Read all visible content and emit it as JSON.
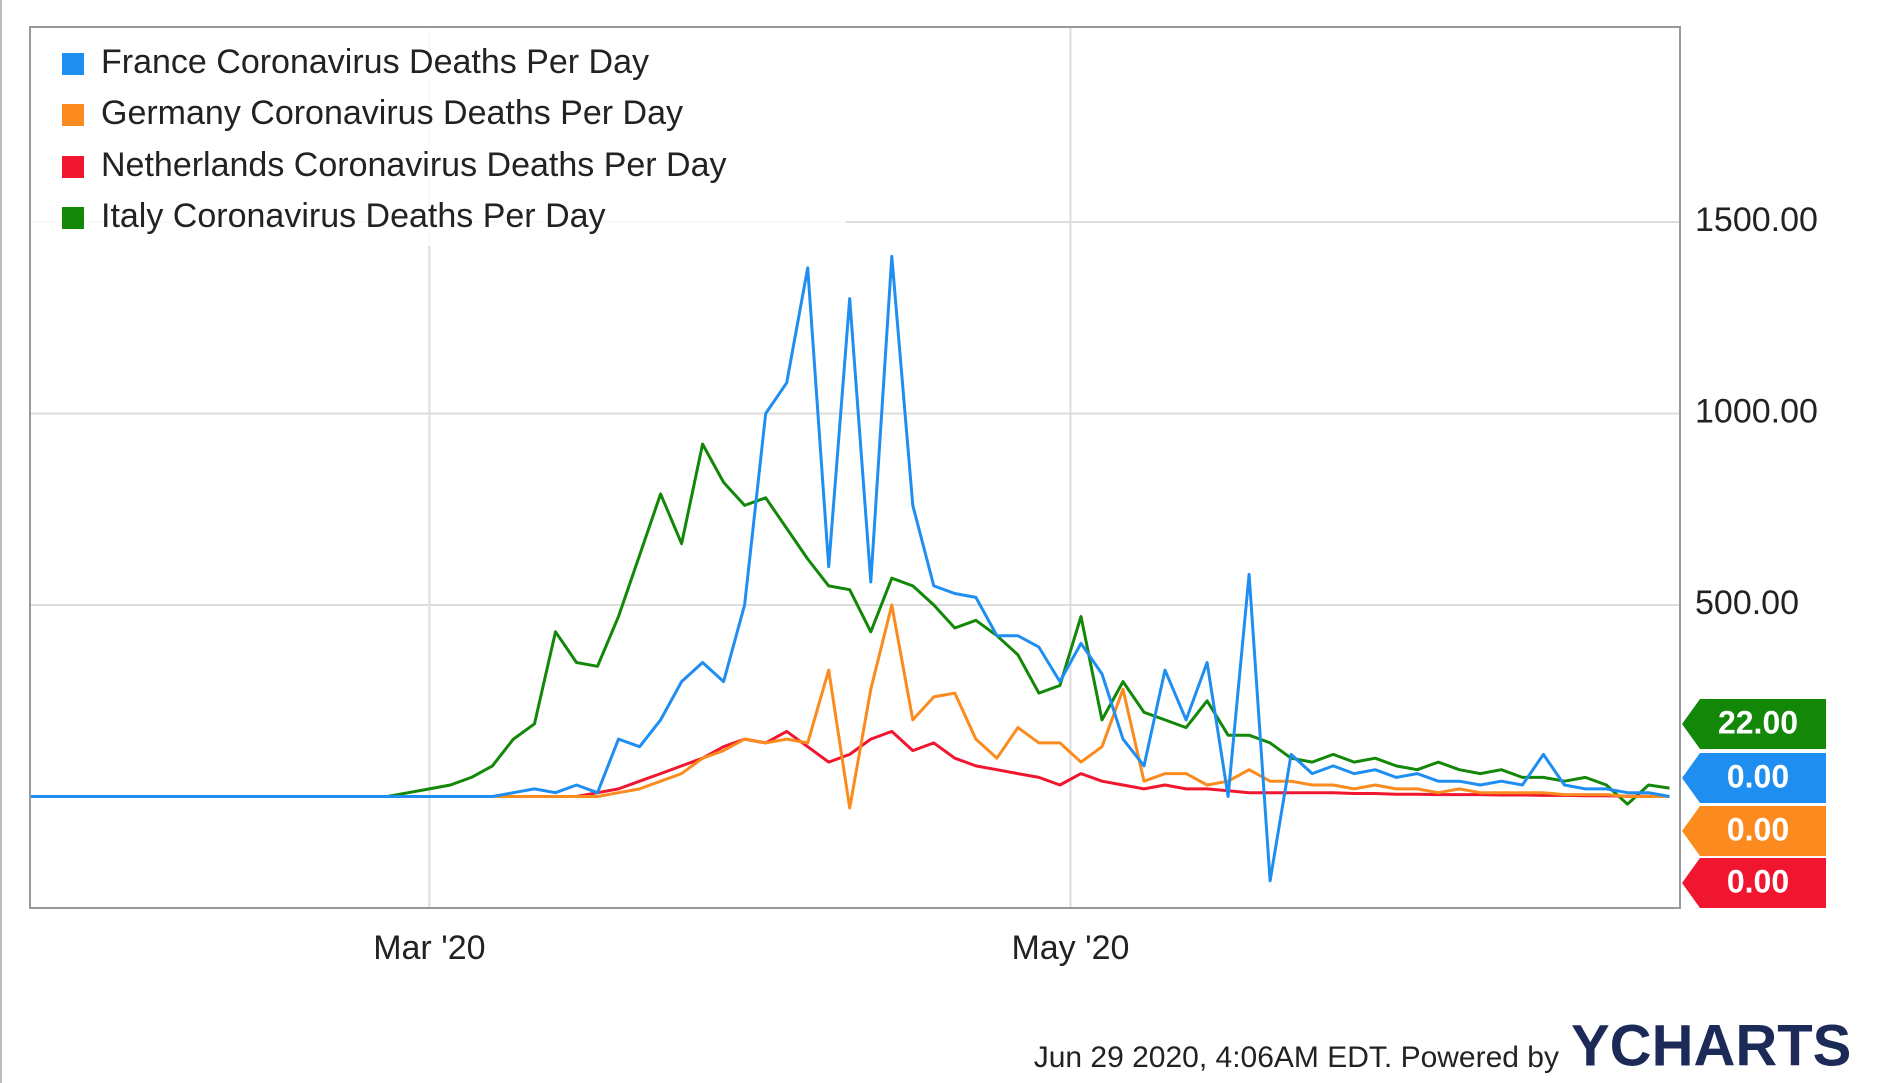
{
  "chart_data": {
    "type": "line",
    "x": [
      0,
      2,
      4,
      6,
      8,
      10,
      12,
      14,
      16,
      18,
      20,
      22,
      24,
      26,
      28,
      30,
      32,
      34,
      36,
      38,
      40,
      42,
      44,
      46,
      48,
      50,
      52,
      54,
      56,
      58,
      60,
      62,
      64,
      66,
      68,
      70,
      72,
      74,
      76,
      78,
      80,
      82,
      84,
      86,
      88,
      90,
      92,
      94,
      96,
      98,
      100,
      102,
      104,
      106,
      108,
      110,
      112,
      114,
      116,
      118,
      120,
      122,
      124,
      126,
      128,
      130,
      132,
      134,
      136,
      138,
      140,
      142,
      144,
      146,
      148,
      150,
      152,
      154,
      156
    ],
    "xlim": [
      0,
      157
    ],
    "xticks": [
      {
        "value": 38,
        "label": "Mar '20"
      },
      {
        "value": 99,
        "label": "May '20"
      }
    ],
    "ylim": [
      -291,
      2009
    ],
    "yticks": [
      {
        "value": 500,
        "label": "500.00"
      },
      {
        "value": 1000,
        "label": "1000.00"
      },
      {
        "value": 1500,
        "label": "1500.00"
      }
    ],
    "grid": true,
    "series": [
      {
        "name": "France Coronavirus Deaths Per Day",
        "color": "#1f8ef1",
        "end_label": "0.00",
        "values": [
          0,
          0,
          0,
          0,
          0,
          0,
          0,
          0,
          0,
          0,
          0,
          0,
          0,
          0,
          0,
          0,
          0,
          0,
          0,
          0,
          0,
          0,
          0,
          10,
          20,
          10,
          30,
          10,
          150,
          130,
          200,
          300,
          350,
          300,
          500,
          1000,
          1080,
          1380,
          600,
          1300,
          560,
          1410,
          760,
          550,
          530,
          520,
          420,
          420,
          390,
          300,
          400,
          320,
          150,
          80,
          330,
          200,
          350,
          0,
          580,
          -220,
          110,
          60,
          80,
          60,
          70,
          50,
          60,
          40,
          40,
          30,
          40,
          30,
          110,
          30,
          20,
          20,
          10,
          10,
          0
        ]
      },
      {
        "name": "Germany Coronavirus Deaths Per Day",
        "color": "#fb8b1e",
        "end_label": "0.00",
        "values": [
          0,
          0,
          0,
          0,
          0,
          0,
          0,
          0,
          0,
          0,
          0,
          0,
          0,
          0,
          0,
          0,
          0,
          0,
          0,
          0,
          0,
          0,
          0,
          0,
          0,
          0,
          0,
          0,
          10,
          20,
          40,
          60,
          100,
          120,
          150,
          140,
          150,
          140,
          330,
          -30,
          280,
          500,
          200,
          260,
          270,
          150,
          100,
          180,
          140,
          140,
          90,
          130,
          280,
          40,
          60,
          60,
          30,
          40,
          70,
          40,
          40,
          30,
          30,
          20,
          30,
          20,
          20,
          10,
          20,
          10,
          10,
          10,
          10,
          5,
          5,
          5,
          0,
          0,
          0
        ]
      },
      {
        "name": "Netherlands Coronavirus Deaths Per Day",
        "color": "#f0162f",
        "end_label": "0.00",
        "values": [
          0,
          0,
          0,
          0,
          0,
          0,
          0,
          0,
          0,
          0,
          0,
          0,
          0,
          0,
          0,
          0,
          0,
          0,
          0,
          0,
          0,
          0,
          0,
          0,
          0,
          0,
          0,
          10,
          20,
          40,
          60,
          80,
          100,
          130,
          150,
          140,
          170,
          130,
          90,
          110,
          150,
          170,
          120,
          140,
          100,
          80,
          70,
          60,
          50,
          30,
          60,
          40,
          30,
          20,
          30,
          20,
          20,
          15,
          10,
          10,
          10,
          10,
          10,
          8,
          8,
          6,
          6,
          5,
          5,
          5,
          4,
          4,
          3,
          3,
          2,
          2,
          1,
          1,
          0
        ]
      },
      {
        "name": "Italy Coronavirus Deaths Per Day",
        "color": "#138808",
        "end_label": "22.00",
        "values": [
          0,
          0,
          0,
          0,
          0,
          0,
          0,
          0,
          0,
          0,
          0,
          0,
          0,
          0,
          0,
          0,
          0,
          0,
          10,
          20,
          30,
          50,
          80,
          150,
          190,
          430,
          350,
          340,
          470,
          630,
          790,
          660,
          920,
          820,
          760,
          780,
          700,
          620,
          550,
          540,
          430,
          570,
          550,
          500,
          440,
          460,
          420,
          370,
          270,
          290,
          470,
          200,
          300,
          220,
          200,
          180,
          250,
          160,
          160,
          140,
          100,
          90,
          110,
          90,
          100,
          80,
          70,
          90,
          70,
          60,
          70,
          50,
          50,
          40,
          50,
          30,
          -20,
          30,
          22
        ]
      }
    ],
    "footer": "Jun 29 2020, 4:06AM EDT.  Powered by",
    "logo": "YCHARTS"
  }
}
